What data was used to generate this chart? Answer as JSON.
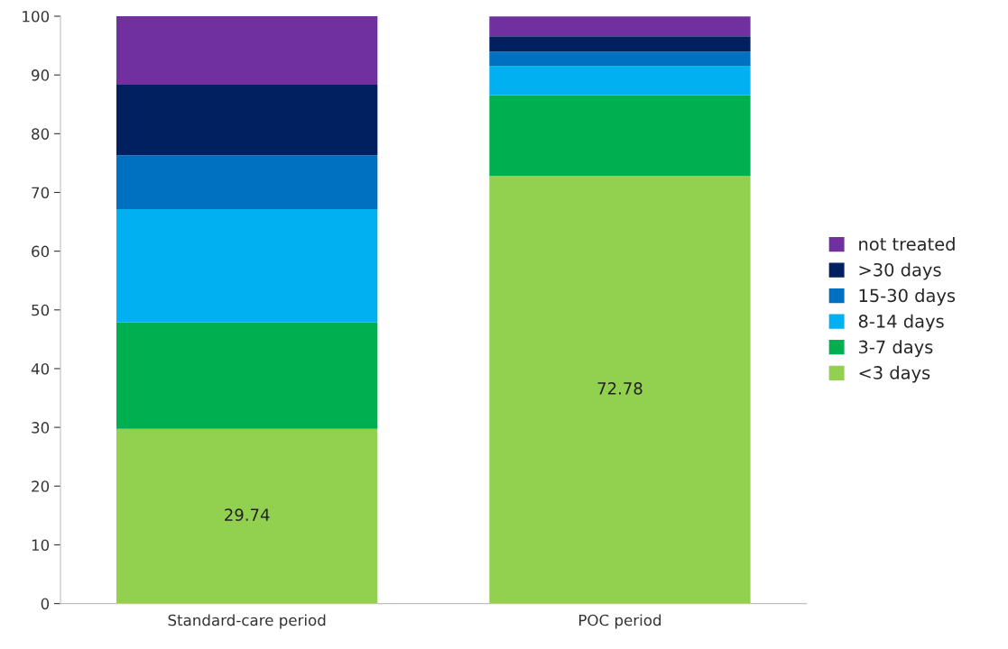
{
  "chart_data": {
    "type": "bar",
    "stacked": true,
    "categories": [
      "Standard-care period",
      "POC period"
    ],
    "series": [
      {
        "name": "<3 days",
        "color": "#92d050",
        "values": [
          29.74,
          72.78
        ],
        "value_labels": [
          "29.74",
          "72.78"
        ]
      },
      {
        "name": "3-7 days",
        "color": "#00b050",
        "values": [
          18.1,
          13.8
        ]
      },
      {
        "name": "8-14 days",
        "color": "#00b0f0",
        "values": [
          19.3,
          4.9
        ]
      },
      {
        "name": "15-30 days",
        "color": "#0070c0",
        "values": [
          9.2,
          2.5
        ]
      },
      {
        "name": ">30 days",
        "color": "#002060",
        "values": [
          12.0,
          2.6
        ]
      },
      {
        "name": "not treated",
        "color": "#7030a0",
        "values": [
          11.7,
          3.4
        ]
      }
    ],
    "ylim": [
      0,
      100
    ],
    "yticks": [
      0,
      10,
      20,
      30,
      40,
      50,
      60,
      70,
      80,
      90,
      100
    ],
    "grid": false,
    "legend": "right"
  }
}
